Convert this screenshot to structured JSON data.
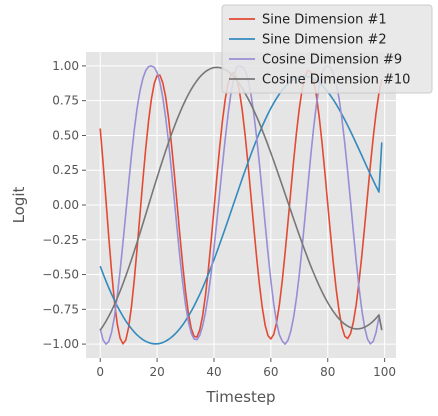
{
  "chart_data": {
    "type": "line",
    "title": "",
    "xlabel": "Timestep",
    "ylabel": "Logit",
    "xlim": [
      -5,
      104
    ],
    "ylim": [
      -1.1,
      1.1
    ],
    "x_ticks": [
      0,
      20,
      40,
      60,
      80,
      100
    ],
    "x_tick_labels": [
      "0",
      "20",
      "40",
      "60",
      "80",
      "100"
    ],
    "y_ticks": [
      1.0,
      0.75,
      0.5,
      0.25,
      0.0,
      -0.25,
      -0.5,
      -0.75,
      -1.0
    ],
    "y_tick_labels": [
      "1.00",
      "0.75",
      "0.50",
      "0.25",
      "0.00",
      "−0.25",
      "−0.50",
      "−0.75",
      "−1.00"
    ],
    "grid": true,
    "legend_position": "top-right",
    "x": [
      0,
      1,
      2,
      3,
      4,
      5,
      6,
      7,
      8,
      9,
      10,
      11,
      12,
      13,
      14,
      15,
      16,
      17,
      18,
      19,
      20,
      21,
      22,
      23,
      24,
      25,
      26,
      27,
      28,
      29,
      30,
      31,
      32,
      33,
      34,
      35,
      36,
      37,
      38,
      39,
      40,
      41,
      42,
      43,
      44,
      45,
      46,
      47,
      48,
      49,
      50,
      51,
      52,
      53,
      54,
      55,
      56,
      57,
      58,
      59,
      60,
      61,
      62,
      63,
      64,
      65,
      66,
      67,
      68,
      69,
      70,
      71,
      72,
      73,
      74,
      75,
      76,
      77,
      78,
      79,
      80,
      81,
      82,
      83,
      84,
      85,
      86,
      87,
      88,
      89,
      90,
      91,
      92,
      93,
      94,
      95,
      96,
      97,
      98,
      99
    ],
    "series": [
      {
        "name": "Sine Dimension #1",
        "color": "#e24a33",
        "values": [
          0.55,
          0.305,
          0.04,
          -0.229,
          -0.479,
          -0.694,
          -0.857,
          -0.958,
          -0.998,
          -0.971,
          -0.878,
          -0.729,
          -0.532,
          -0.304,
          -0.063,
          0.179,
          0.406,
          0.604,
          0.763,
          0.874,
          0.931,
          0.933,
          0.879,
          0.778,
          0.63,
          0.446,
          0.236,
          0.012,
          -0.215,
          -0.431,
          -0.622,
          -0.777,
          -0.887,
          -0.945,
          -0.949,
          -0.898,
          -0.797,
          -0.651,
          -0.468,
          -0.257,
          -0.031,
          0.199,
          0.416,
          0.609,
          0.766,
          0.879,
          0.942,
          0.952,
          0.908,
          0.812,
          0.671,
          0.492,
          0.286,
          0.064,
          -0.161,
          -0.378,
          -0.575,
          -0.74,
          -0.865,
          -0.94,
          -0.963,
          -0.931,
          -0.847,
          -0.716,
          -0.546,
          -0.345,
          -0.127,
          0.098,
          0.316,
          0.519,
          0.694,
          0.83,
          0.924,
          0.967,
          0.958,
          0.897,
          0.787,
          0.633,
          0.444,
          0.232,
          0.008,
          -0.215,
          -0.426,
          -0.612,
          -0.766,
          -0.878,
          -0.944,
          -0.96,
          -0.925,
          -0.843,
          -0.717,
          -0.553,
          -0.36,
          -0.149,
          0.071,
          0.287,
          0.488,
          0.663,
          0.804,
          0.903
        ]
      },
      {
        "name": "Sine Dimension #2",
        "color": "#348abd",
        "values": [
          -0.44,
          -0.494,
          -0.546,
          -0.595,
          -0.641,
          -0.685,
          -0.727,
          -0.765,
          -0.801,
          -0.834,
          -0.863,
          -0.89,
          -0.914,
          -0.935,
          -0.953,
          -0.968,
          -0.98,
          -0.989,
          -0.995,
          -0.998,
          -0.998,
          -0.995,
          -0.989,
          -0.979,
          -0.967,
          -0.952,
          -0.934,
          -0.913,
          -0.889,
          -0.862,
          -0.832,
          -0.799,
          -0.764,
          -0.726,
          -0.685,
          -0.642,
          -0.596,
          -0.548,
          -0.498,
          -0.446,
          -0.393,
          -0.338,
          -0.281,
          -0.224,
          -0.165,
          -0.106,
          -0.046,
          0.014,
          0.074,
          0.134,
          0.193,
          0.251,
          0.308,
          0.364,
          0.418,
          0.47,
          0.52,
          0.568,
          0.613,
          0.656,
          0.696,
          0.733,
          0.767,
          0.798,
          0.826,
          0.85,
          0.871,
          0.889,
          0.903,
          0.914,
          0.921,
          0.925,
          0.926,
          0.923,
          0.917,
          0.907,
          0.895,
          0.879,
          0.86,
          0.838,
          0.813,
          0.786,
          0.756,
          0.723,
          0.688,
          0.651,
          0.612,
          0.572,
          0.53,
          0.487,
          0.443,
          0.399,
          0.354,
          0.309,
          0.264,
          0.22,
          0.176,
          0.134,
          0.093,
          0.45
        ]
      },
      {
        "name": "Cosine Dimension #9",
        "color": "#988ed5",
        "values": [
          -0.89,
          -0.97,
          -1.0,
          -0.982,
          -0.915,
          -0.803,
          -0.652,
          -0.471,
          -0.27,
          -0.058,
          0.155,
          0.36,
          0.544,
          0.701,
          0.822,
          0.91,
          0.967,
          0.995,
          1.0,
          0.99,
          0.953,
          0.882,
          0.774,
          0.63,
          0.456,
          0.259,
          0.047,
          -0.167,
          -0.373,
          -0.56,
          -0.718,
          -0.84,
          -0.921,
          -0.963,
          -0.968,
          -0.937,
          -0.871,
          -0.773,
          -0.645,
          -0.49,
          -0.312,
          -0.117,
          0.087,
          0.291,
          0.485,
          0.66,
          0.808,
          0.922,
          0.993,
          1.0,
          0.992,
          0.967,
          0.901,
          0.797,
          0.657,
          0.486,
          0.291,
          0.079,
          -0.138,
          -0.349,
          -0.543,
          -0.711,
          -0.843,
          -0.933,
          -0.978,
          -1.0,
          -0.973,
          -0.908,
          -0.807,
          -0.669,
          -0.499,
          -0.303,
          -0.089,
          0.132,
          0.348,
          0.548,
          0.72,
          0.855,
          0.946,
          0.99,
          1.0,
          0.987,
          0.947,
          0.873,
          0.763,
          0.617,
          0.441,
          0.242,
          0.028,
          -0.19,
          -0.402,
          -0.594,
          -0.758,
          -0.884,
          -0.965,
          -0.998,
          -0.98,
          -0.915,
          -0.806,
          -0.89
        ]
      },
      {
        "name": "Cosine Dimension #10",
        "color": "#777777",
        "values": [
          -0.9,
          -0.87,
          -0.837,
          -0.8,
          -0.76,
          -0.716,
          -0.669,
          -0.619,
          -0.566,
          -0.51,
          -0.452,
          -0.392,
          -0.33,
          -0.266,
          -0.201,
          -0.135,
          -0.068,
          -0.001,
          0.066,
          0.133,
          0.198,
          0.263,
          0.326,
          0.388,
          0.448,
          0.506,
          0.561,
          0.614,
          0.664,
          0.711,
          0.755,
          0.795,
          0.832,
          0.865,
          0.894,
          0.92,
          0.941,
          0.959,
          0.972,
          0.982,
          0.988,
          0.99,
          0.988,
          0.982,
          0.972,
          0.959,
          0.942,
          0.921,
          0.896,
          0.868,
          0.837,
          0.802,
          0.764,
          0.724,
          0.681,
          0.635,
          0.587,
          0.536,
          0.484,
          0.43,
          0.374,
          0.317,
          0.259,
          0.2,
          0.14,
          0.08,
          0.02,
          -0.04,
          -0.1,
          -0.159,
          -0.217,
          -0.274,
          -0.33,
          -0.384,
          -0.437,
          -0.487,
          -0.535,
          -0.581,
          -0.624,
          -0.665,
          -0.702,
          -0.736,
          -0.767,
          -0.795,
          -0.819,
          -0.84,
          -0.857,
          -0.871,
          -0.881,
          -0.888,
          -0.891,
          -0.89,
          -0.886,
          -0.878,
          -0.867,
          -0.853,
          -0.835,
          -0.814,
          -0.79,
          -0.9
        ]
      }
    ]
  }
}
